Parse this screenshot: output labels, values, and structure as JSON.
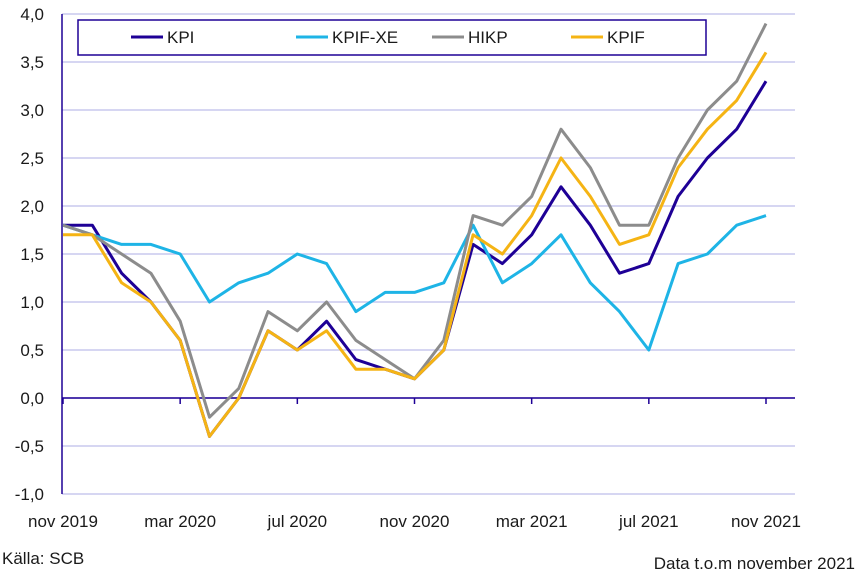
{
  "chart_data": {
    "type": "line",
    "title": "",
    "xlabel": "",
    "ylabel": "",
    "ylim": [
      -1.0,
      4.0
    ],
    "y_ticks": [
      "-1,0",
      "-0,5",
      "0,0",
      "0,5",
      "1,0",
      "1,5",
      "2,0",
      "2,5",
      "3,0",
      "3,5",
      "4,0"
    ],
    "x": [
      "nov 2019",
      "dec 2019",
      "jan 2020",
      "feb 2020",
      "mar 2020",
      "apr 2020",
      "maj 2020",
      "jun 2020",
      "jul 2020",
      "aug 2020",
      "sep 2020",
      "okt 2020",
      "nov 2020",
      "dec 2020",
      "jan 2021",
      "feb 2021",
      "mar 2021",
      "apr 2021",
      "maj 2021",
      "jun 2021",
      "jul 2021",
      "aug 2021",
      "sep 2021",
      "okt 2021",
      "nov 2021"
    ],
    "x_tick_labels": [
      "nov 2019",
      "mar 2020",
      "jul 2020",
      "nov 2020",
      "mar 2021",
      "jul 2021",
      "nov 2021"
    ],
    "grid": true,
    "legend_position": "top",
    "series": [
      {
        "name": "KPI",
        "color": "#1e0096",
        "values": [
          1.8,
          1.8,
          1.3,
          1.0,
          0.6,
          -0.4,
          0.0,
          0.7,
          0.5,
          0.8,
          0.4,
          0.3,
          0.2,
          0.5,
          1.6,
          1.4,
          1.7,
          2.2,
          1.8,
          1.3,
          1.4,
          2.1,
          2.5,
          2.8,
          3.3
        ]
      },
      {
        "name": "KPIF-XE",
        "color": "#1eb4e6",
        "values": [
          1.8,
          1.7,
          1.6,
          1.6,
          1.5,
          1.0,
          1.2,
          1.3,
          1.5,
          1.4,
          0.9,
          1.1,
          1.1,
          1.2,
          1.8,
          1.2,
          1.4,
          1.7,
          1.2,
          0.9,
          0.5,
          1.4,
          1.5,
          1.8,
          1.9
        ]
      },
      {
        "name": "HIKP",
        "color": "#8c8c8c",
        "values": [
          1.8,
          1.7,
          1.5,
          1.3,
          0.8,
          -0.2,
          0.1,
          0.9,
          0.7,
          1.0,
          0.6,
          0.4,
          0.2,
          0.6,
          1.9,
          1.8,
          2.1,
          2.8,
          2.4,
          1.8,
          1.8,
          2.5,
          3.0,
          3.3,
          3.9
        ]
      },
      {
        "name": "KPIF",
        "color": "#f5b414",
        "values": [
          1.7,
          1.7,
          1.2,
          1.0,
          0.6,
          -0.4,
          0.0,
          0.7,
          0.5,
          0.7,
          0.3,
          0.3,
          0.2,
          0.5,
          1.7,
          1.5,
          1.9,
          2.5,
          2.1,
          1.6,
          1.7,
          2.4,
          2.8,
          3.1,
          3.6
        ]
      }
    ]
  },
  "footer": {
    "source": "Källa: SCB",
    "note": "Data t.o.m november 2021"
  }
}
